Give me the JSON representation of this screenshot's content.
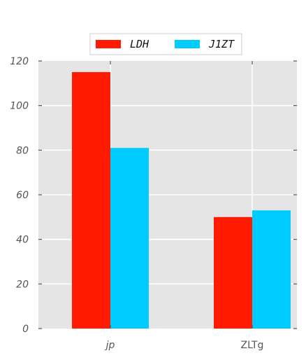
{
  "chart_data": {
    "type": "bar",
    "categories": [
      "jp",
      "ZLTg"
    ],
    "category_styles": [
      "italic",
      "normal"
    ],
    "series": [
      {
        "name": "LDH",
        "values": [
          115,
          50
        ],
        "color": "#ff1a00"
      },
      {
        "name": "J1ZT",
        "values": [
          81,
          53
        ],
        "color": "#00ccff"
      }
    ],
    "title": "",
    "xlabel": "",
    "ylabel": "",
    "ylim": [
      0,
      120
    ],
    "yticks": [
      0,
      20,
      40,
      60,
      80,
      100,
      120
    ],
    "ytick_labels": [
      "0",
      "20",
      "40",
      "60",
      "80",
      "100",
      "120"
    ],
    "grid": true,
    "background_color": "#e5e5e5",
    "grid_color": "#ffffff",
    "legend_position": "top-center"
  }
}
